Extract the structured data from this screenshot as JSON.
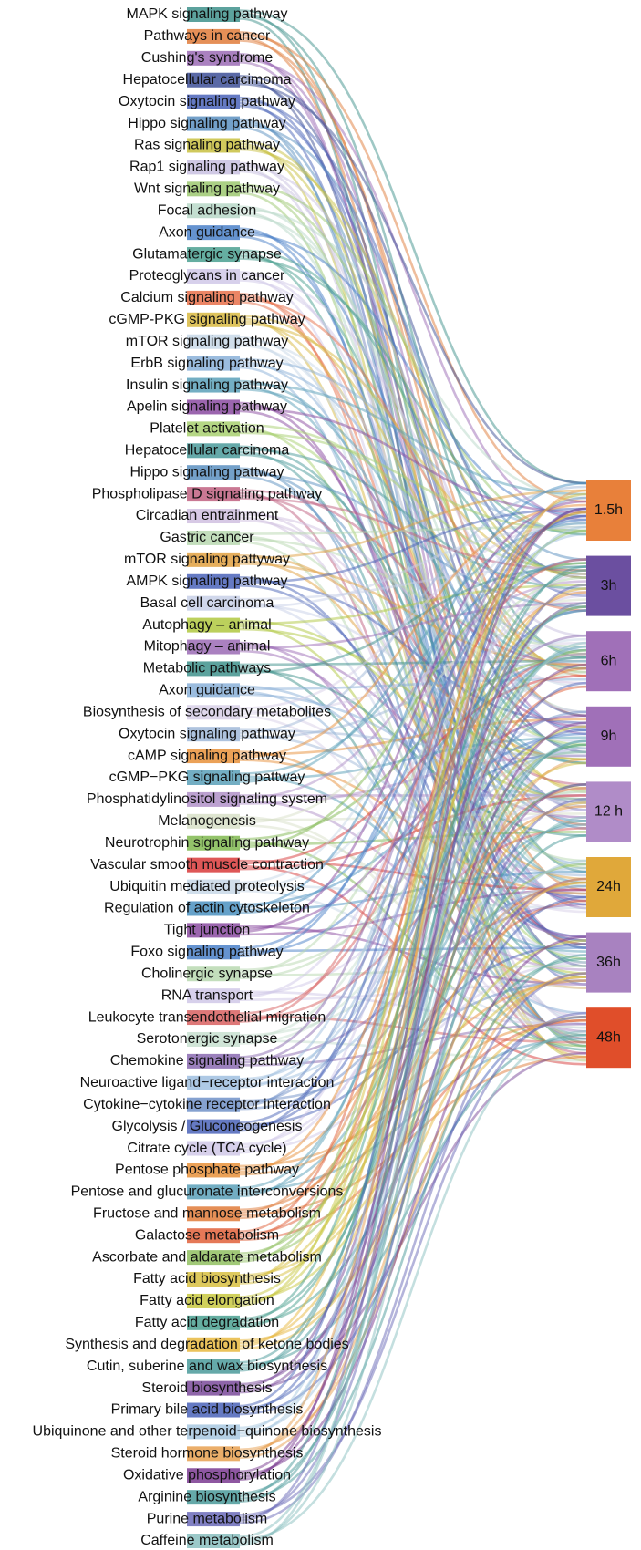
{
  "pathways": [
    {
      "label": "MAPK signaling pathway",
      "color": "#3f928c"
    },
    {
      "label": "Pathways in cancer",
      "color": "#e07b39"
    },
    {
      "label": "Cushing's syndrome",
      "color": "#9b6bb5"
    },
    {
      "label": "Hepatocellular carcimoma",
      "color": "#3d4f96"
    },
    {
      "label": "Oxytocin signaling pathway",
      "color": "#4a63b8"
    },
    {
      "label": "Hippo signaling pathway",
      "color": "#5a8fc0"
    },
    {
      "label": "Ras signaling pathway",
      "color": "#c8c040"
    },
    {
      "label": "Rap1 signaling pathway",
      "color": "#c8c0e0"
    },
    {
      "label": "Wnt signaling pathway",
      "color": "#9cc870"
    },
    {
      "label": "Focal adhesion",
      "color": "#b8d8c8"
    },
    {
      "label": "Axon guidance",
      "color": "#4a80c8"
    },
    {
      "label": "Glutamatergic synapse",
      "color": "#4aa090"
    },
    {
      "label": "Proteoglycans in cancer",
      "color": "#d0c8e8"
    },
    {
      "label": "Calcium signaling pathway",
      "color": "#e8704a"
    },
    {
      "label": "cGMP-PKG signaling pathway",
      "color": "#d8b840"
    },
    {
      "label": "mTOR signaling pathway",
      "color": "#c8d8e8"
    },
    {
      "label": "ErbB signaling pathway",
      "color": "#8ab0d8"
    },
    {
      "label": "Insulin signaling pathway",
      "color": "#5aa0b8"
    },
    {
      "label": "Apelin signaling pathway",
      "color": "#8a4aa0"
    },
    {
      "label": "Platelet activation",
      "color": "#a8d070"
    },
    {
      "label": "Hepatocellular carcinoma",
      "color": "#4a9a9a"
    },
    {
      "label": "Hippo signaling pattway",
      "color": "#5a8fc0"
    },
    {
      "label": "Phospholipase D signaling pathway",
      "color": "#c06080"
    },
    {
      "label": "Circadian entrainment",
      "color": "#d0c0e0"
    },
    {
      "label": "Gastric cancer",
      "color": "#b8d8b0"
    },
    {
      "label": "mTOR signaling pattyway",
      "color": "#e0a040"
    },
    {
      "label": "AMPK signaling pathway",
      "color": "#4a63b8"
    },
    {
      "label": "Basal cell carcinoma",
      "color": "#c8d0e8"
    },
    {
      "label": "Autophagy – animal",
      "color": "#b0c840"
    },
    {
      "label": "Mitophagy – animal",
      "color": "#9b6bb5"
    },
    {
      "label": "Metabolic pathways",
      "color": "#3f928c"
    },
    {
      "label": "Axon guidance",
      "color": "#8ab0d8"
    },
    {
      "label": "Biosynthesis of secondary metabolites",
      "color": "#d8d0e8"
    },
    {
      "label": "Oxytocin signaling pathway",
      "color": "#a0b8d8"
    },
    {
      "label": "cAMP signaling pathway",
      "color": "#e8903a"
    },
    {
      "label": "cGMP−PKG signaling pattway",
      "color": "#5aa0b8"
    },
    {
      "label": "Phosphatidylinositol signaling system",
      "color": "#b090c8"
    },
    {
      "label": "Melanogenesis",
      "color": "#d8e0c8"
    },
    {
      "label": "Neurotrophin signaling pathway",
      "color": "#80b850"
    },
    {
      "label": "Vascular smooth muscle contraction",
      "color": "#d83a3a"
    },
    {
      "label": "Ubiquitin mediated proteolysis",
      "color": "#c8d8e8"
    },
    {
      "label": "Regulation of actin cytoskeleton",
      "color": "#4a90c0"
    },
    {
      "label": "Tight junction",
      "color": "#8a4aa0"
    },
    {
      "label": "Foxo signaling pathway",
      "color": "#4a80c8"
    },
    {
      "label": "Cholinergic synapse",
      "color": "#b8d8b0"
    },
    {
      "label": "RNA transport",
      "color": "#d0c8e8"
    },
    {
      "label": "Leukocyte transendothelial migration",
      "color": "#d86060"
    },
    {
      "label": "Serotonergic synapse",
      "color": "#c8e0d0"
    },
    {
      "label": "Chemokine signaling pathway",
      "color": "#8a6ab0"
    },
    {
      "label": "Neuroactive ligand−receptor interaction",
      "color": "#a0c0e0"
    },
    {
      "label": "Cytokine−cytokine receptor interaction",
      "color": "#7090c8"
    },
    {
      "label": "Glycolysis / Gluconeogenesis",
      "color": "#4a63b8"
    },
    {
      "label": "Citrate cycle (TCA cycle)",
      "color": "#d0c8e8"
    },
    {
      "label": "Pentose phosphate pathway",
      "color": "#e8903a"
    },
    {
      "label": "Pentose and glucuronate interconversions",
      "color": "#5aa0b8"
    },
    {
      "label": "Fructose and mannose metabolism",
      "color": "#e07b39"
    },
    {
      "label": "Galactose metabolism",
      "color": "#e0603a"
    },
    {
      "label": "Ascorbate and aldarate metabolism",
      "color": "#90c060"
    },
    {
      "label": "Fatty acid biosynthesis",
      "color": "#d8c040"
    },
    {
      "label": "Fatty acid elongation",
      "color": "#c8c840"
    },
    {
      "label": "Fatty acid degradation",
      "color": "#4aa090"
    },
    {
      "label": "Synthesis and degradation of ketone bodies",
      "color": "#e8b840"
    },
    {
      "label": "Cutin, suberine and wax biosynthesis",
      "color": "#4a9a9a"
    },
    {
      "label": "Steroid biosynthesis",
      "color": "#7a4a9a"
    },
    {
      "label": "Primary bile acid biosynthesis",
      "color": "#4a63b8"
    },
    {
      "label": "Ubiquinone and other terpenoid−quinone biosynthesis",
      "color": "#a8c8e0"
    },
    {
      "label": "Steroid hormone biosynthesis",
      "color": "#e8a050"
    },
    {
      "label": "Oxidative phosphorylation",
      "color": "#7a3a90"
    },
    {
      "label": "Arginine biosynthesis",
      "color": "#4a9a9a"
    },
    {
      "label": "Purine metabolism",
      "color": "#6a6ab8"
    },
    {
      "label": "Caffeine metabolism",
      "color": "#8ac0c0"
    }
  ],
  "timepoints": [
    {
      "label": "1.5h",
      "color": "#e8803a"
    },
    {
      "label": "3h",
      "color": "#6b4fa0"
    },
    {
      "label": "6h",
      "color": "#a070b8"
    },
    {
      "label": "9h",
      "color": "#a070b8"
    },
    {
      "label": "12 h",
      "color": "#b08cc8"
    },
    {
      "label": "24h",
      "color": "#e0a83a"
    },
    {
      "label": "36h",
      "color": "#a882c0"
    },
    {
      "label": "48h",
      "color": "#e04e2a"
    }
  ]
}
